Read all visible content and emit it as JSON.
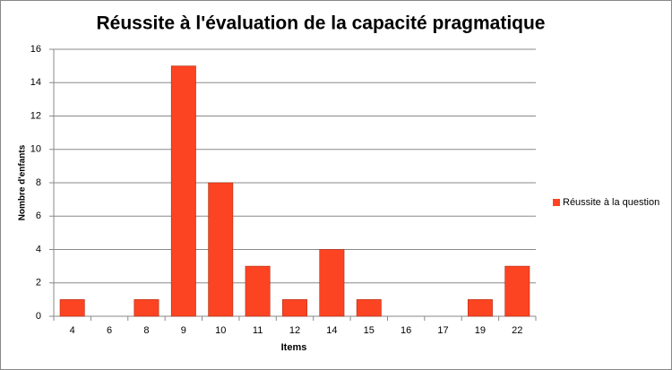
{
  "chart_data": {
    "type": "bar",
    "title": "Réussite à l'évaluation de la capacité pragmatique",
    "x_label": "Items",
    "y_label": "Nombre d'enfants",
    "categories": [
      "4",
      "6",
      "8",
      "9",
      "10",
      "11",
      "12",
      "14",
      "15",
      "16",
      "17",
      "19",
      "22"
    ],
    "series": [
      {
        "name": "Réussite à la question",
        "color": "#fc4423",
        "values": [
          1,
          0,
          1,
          15,
          8,
          3,
          1,
          4,
          1,
          0,
          0,
          1,
          3
        ]
      }
    ],
    "ylim": [
      0,
      16
    ],
    "yticks": [
      0,
      2,
      4,
      6,
      8,
      10,
      12,
      14,
      16
    ],
    "grid": true,
    "legend": "right"
  }
}
